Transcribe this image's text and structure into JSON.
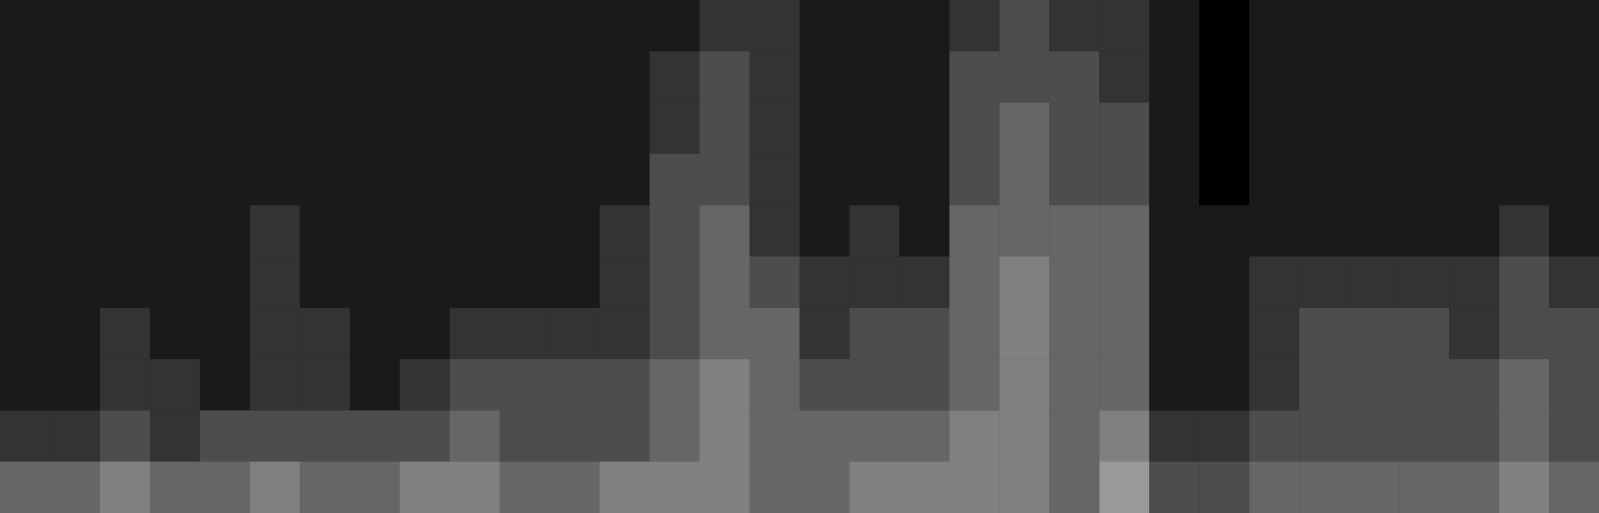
{
  "chart_data": {
    "type": "heatmap",
    "tick_labels": false,
    "grid": false,
    "color": "#ffffff",
    "zlim": [
      0,
      10
    ],
    "cells": [
      [
        1,
        1,
        1,
        1,
        1,
        1,
        1,
        1,
        1,
        1,
        1,
        1,
        1,
        1,
        2,
        2,
        1,
        1,
        1,
        2,
        3,
        2,
        2,
        1,
        0,
        1,
        1,
        1,
        1,
        1,
        1,
        1
      ],
      [
        1,
        1,
        1,
        1,
        1,
        1,
        1,
        1,
        1,
        1,
        1,
        1,
        1,
        2,
        3,
        2,
        1,
        1,
        1,
        3,
        3,
        3,
        2,
        1,
        0,
        1,
        1,
        1,
        1,
        1,
        1,
        1
      ],
      [
        1,
        1,
        1,
        1,
        1,
        1,
        1,
        1,
        1,
        1,
        1,
        1,
        1,
        2,
        3,
        2,
        1,
        1,
        1,
        3,
        4,
        3,
        3,
        1,
        0,
        1,
        1,
        1,
        1,
        1,
        1,
        1
      ],
      [
        1,
        1,
        1,
        1,
        1,
        1,
        1,
        1,
        1,
        1,
        1,
        1,
        1,
        3,
        3,
        2,
        1,
        1,
        1,
        3,
        4,
        3,
        3,
        1,
        0,
        1,
        1,
        1,
        1,
        1,
        1,
        1
      ],
      [
        1,
        1,
        1,
        1,
        1,
        2,
        1,
        1,
        1,
        1,
        1,
        1,
        2,
        3,
        4,
        2,
        1,
        2,
        1,
        4,
        4,
        4,
        4,
        1,
        1,
        1,
        1,
        1,
        1,
        1,
        2,
        1
      ],
      [
        1,
        1,
        1,
        1,
        1,
        2,
        1,
        1,
        1,
        1,
        1,
        1,
        2,
        3,
        4,
        3,
        2,
        2,
        2,
        4,
        5,
        4,
        4,
        1,
        1,
        2,
        2,
        2,
        2,
        2,
        3,
        2
      ],
      [
        1,
        1,
        2,
        1,
        1,
        2,
        2,
        1,
        1,
        2,
        2,
        2,
        2,
        3,
        4,
        4,
        2,
        3,
        3,
        4,
        5,
        4,
        4,
        1,
        1,
        2,
        3,
        3,
        3,
        2,
        3,
        3
      ],
      [
        1,
        1,
        2,
        2,
        1,
        2,
        2,
        1,
        2,
        3,
        3,
        3,
        3,
        4,
        5,
        4,
        3,
        3,
        3,
        4,
        5,
        4,
        4,
        1,
        1,
        2,
        3,
        3,
        3,
        3,
        4,
        3
      ],
      [
        2,
        2,
        3,
        2,
        3,
        3,
        3,
        3,
        3,
        4,
        3,
        3,
        3,
        4,
        5,
        4,
        4,
        4,
        4,
        5,
        5,
        4,
        5,
        2,
        2,
        3,
        3,
        3,
        3,
        3,
        4,
        3
      ],
      [
        4,
        4,
        5,
        4,
        4,
        5,
        4,
        4,
        5,
        5,
        4,
        4,
        5,
        5,
        5,
        4,
        4,
        5,
        5,
        5,
        5,
        4,
        6,
        3,
        3,
        4,
        4,
        4,
        4,
        4,
        5,
        4
      ]
    ]
  }
}
